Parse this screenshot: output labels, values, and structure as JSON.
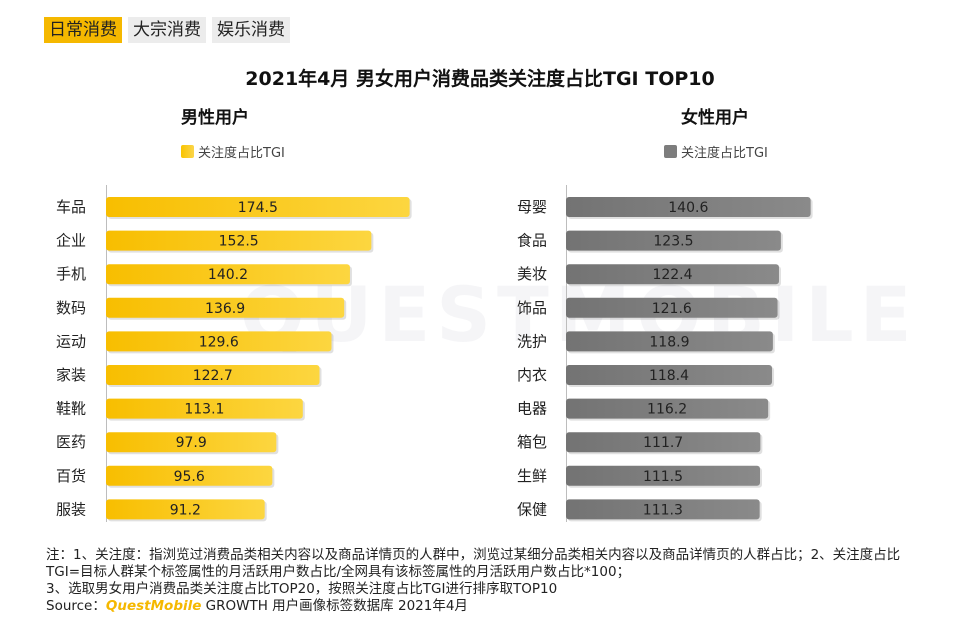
{
  "tabs": [
    {
      "label": "日常消费",
      "active": true
    },
    {
      "label": "大宗消费",
      "active": false
    },
    {
      "label": "娱乐消费",
      "active": false
    }
  ],
  "watermark": "QUESTMOBILE",
  "chart_data": [
    {
      "type": "bar",
      "orientation": "horizontal",
      "title": "2021年4月 男女用户消费品类关注度占比TGI TOP10",
      "panel_title": "男性用户",
      "legend": "关注度占比TGI",
      "categories": [
        "车品",
        "企业",
        "手机",
        "数码",
        "运动",
        "家装",
        "鞋靴",
        "医药",
        "百货",
        "服装"
      ],
      "values": [
        174.5,
        152.5,
        140.2,
        136.9,
        129.6,
        122.7,
        113.1,
        97.9,
        95.6,
        91.2
      ],
      "color": "#f9c400",
      "xlim": [
        0,
        200
      ]
    },
    {
      "type": "bar",
      "orientation": "horizontal",
      "panel_title": "女性用户",
      "legend": "关注度占比TGI",
      "categories": [
        "母婴",
        "食品",
        "美妆",
        "饰品",
        "洗护",
        "内衣",
        "电器",
        "箱包",
        "生鲜",
        "保健"
      ],
      "values": [
        140.6,
        123.5,
        122.4,
        121.6,
        118.9,
        118.4,
        116.2,
        111.7,
        111.5,
        111.3
      ],
      "color": "#7d7d7d",
      "xlim": [
        0,
        200
      ]
    }
  ],
  "notes": {
    "line1": "注：1、关注度：指浏览过消费品类相关内容以及商品详情页的人群中，浏览过某细分品类相关内容以及商品详情页的人群占比；2、关注度占比TGI=目标人群某个标签属性的月活跃用户数占比/全网具有该标签属性的月活跃用户数占比*100；",
    "line2": "3、选取男女用户消费品类关注度占比TOP20，按照关注度占比TGI进行排序取TOP10",
    "source_prefix": "Source：",
    "source_brand": "QuestMobile",
    "source_suffix": " GROWTH 用户画像标签数据库 2021年4月"
  }
}
